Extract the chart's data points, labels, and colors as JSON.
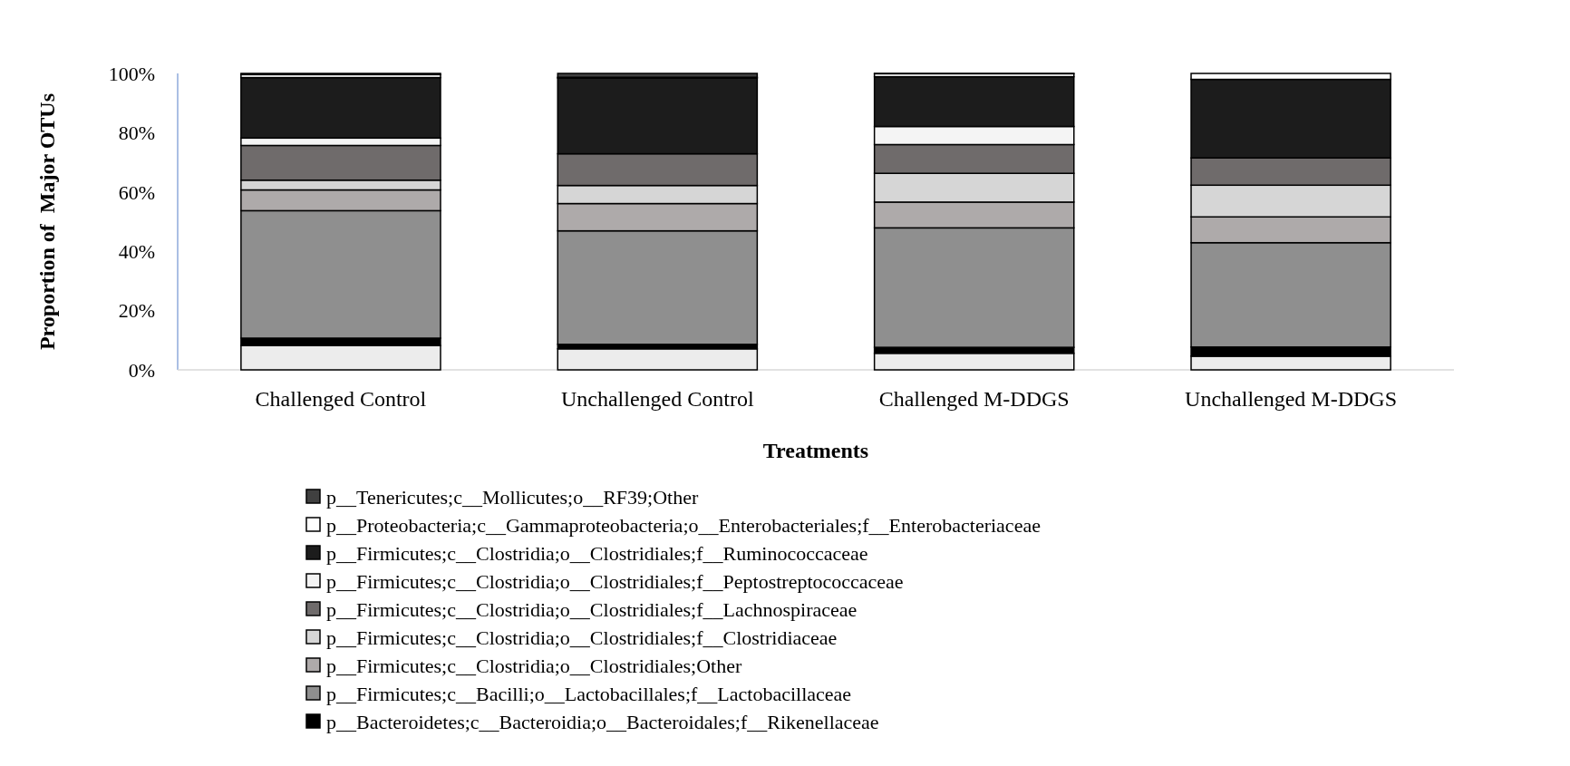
{
  "chart_data": {
    "type": "bar",
    "stacked": true,
    "xlabel": "Treatments",
    "ylabel": "Proportion of  Major OTUs",
    "categories": [
      "Challenged Control",
      "Unchallenged Control",
      "Challenged M-DDGS",
      "Unchallenged M-DDGS"
    ],
    "ylim": [
      0,
      100
    ],
    "yticks": [
      {
        "value": 0,
        "label": "0%"
      },
      {
        "value": 20,
        "label": "20%"
      },
      {
        "value": 40,
        "label": "40%"
      },
      {
        "value": 60,
        "label": "60%"
      },
      {
        "value": 80,
        "label": "80%"
      },
      {
        "value": 100,
        "label": "100%"
      }
    ],
    "legend": "bottom",
    "grid": false,
    "series": [
      {
        "color": "#ececec",
        "values": [
          8.2,
          7.1,
          5.6,
          4.6
        ]
      },
      {
        "name": "p__Bacteroidetes;c__Bacteroidia;o__Bacteroidales;f__Rikenellaceae",
        "color": "#000000",
        "values": [
          2.5,
          1.5,
          2,
          3.1
        ]
      },
      {
        "name": "p__Firmicutes;c__Bacilli;o__Lactobacillales;f__Lactobacillaceae",
        "color": "#8f8f8f",
        "values": [
          43,
          38.3,
          40.3,
          35.2
        ]
      },
      {
        "name": "p__Firmicutes;c__Clostridia;o__Clostridiales;Other",
        "color": "#aeaaaa",
        "values": [
          7,
          9.2,
          8.7,
          8.7
        ]
      },
      {
        "name": "p__Firmicutes;c__Clostridia;o__Clostridiales;f__Clostridiaceae",
        "color": "#d6d6d6",
        "values": [
          3.3,
          6.1,
          9.7,
          10.7
        ]
      },
      {
        "name": "p__Firmicutes;c__Clostridia;o__Clostridiales;f__Lachnospiraceae",
        "color": "#6f6b6b",
        "values": [
          11.7,
          10.7,
          9.7,
          9.2
        ]
      },
      {
        "name": "p__Firmicutes;c__Clostridia;o__Clostridiales;f__Peptostreptococcaceae",
        "color": "#f4f4f4",
        "values": [
          2.5,
          0,
          6.1,
          0
        ]
      },
      {
        "name": "p__Firmicutes;c__Clostridia;o__Clostridiales;f__Ruminococcaceae",
        "color": "#1c1c1c",
        "values": [
          20.4,
          25.5,
          16.8,
          26.5
        ]
      },
      {
        "name": "p__Proteobacteria;c__Gammaproteobacteria;o__Enterobacteriales;f__Enterobacteriaceae",
        "color": "#ffffff",
        "values": [
          1,
          0.3,
          1,
          2
        ]
      },
      {
        "name": "p__Tenericutes;c__Mollicutes;o__RF39;Other",
        "color": "#404040",
        "values": [
          0.4,
          1.3,
          0.1,
          0
        ]
      }
    ]
  }
}
